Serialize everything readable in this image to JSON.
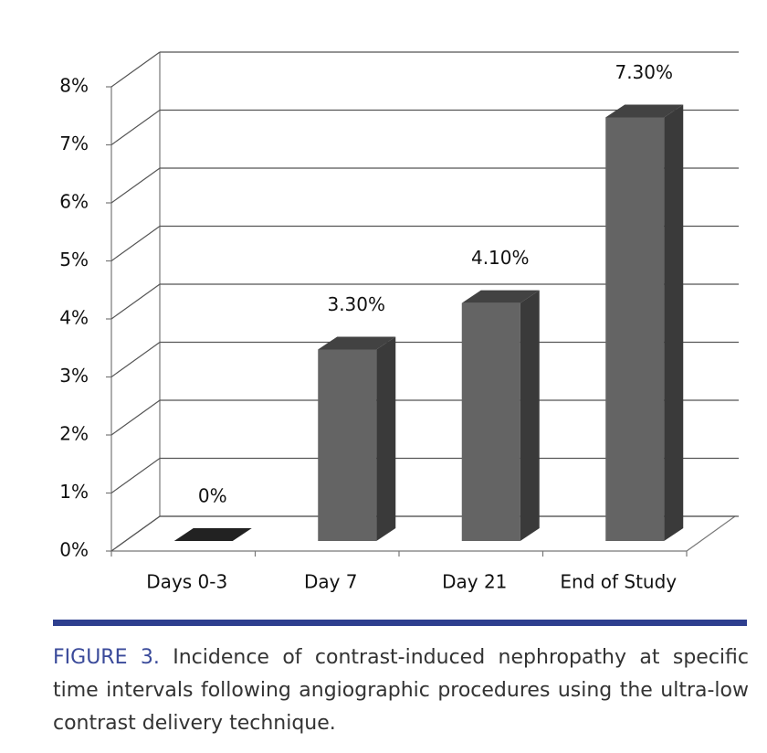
{
  "chart_data": {
    "type": "bar",
    "categories": [
      "Days 0-3",
      "Day 7",
      "Day 21",
      "End of Study"
    ],
    "values": [
      0,
      3.3,
      4.1,
      7.3
    ],
    "value_labels": [
      "0%",
      "3.30%",
      "4.10%",
      "7.30%"
    ],
    "color": "#646464",
    "ylim": [
      0,
      8
    ],
    "yticks": [
      {
        "value": 0,
        "label": "0%"
      },
      {
        "value": 1,
        "label": "1%"
      },
      {
        "value": 2,
        "label": "2%"
      },
      {
        "value": 3,
        "label": "3%"
      },
      {
        "value": 4,
        "label": "4%"
      },
      {
        "value": 5,
        "label": "5%"
      },
      {
        "value": 6,
        "label": "6%"
      },
      {
        "value": 7,
        "label": "7%"
      },
      {
        "value": 8,
        "label": "8%"
      }
    ],
    "grid": true
  },
  "caption": {
    "label": "FIGURE 3.",
    "text": "Incidence of contrast-induced nephropathy at specific time intervals following angiographic procedures using the ultra-low contrast delivery technique."
  }
}
